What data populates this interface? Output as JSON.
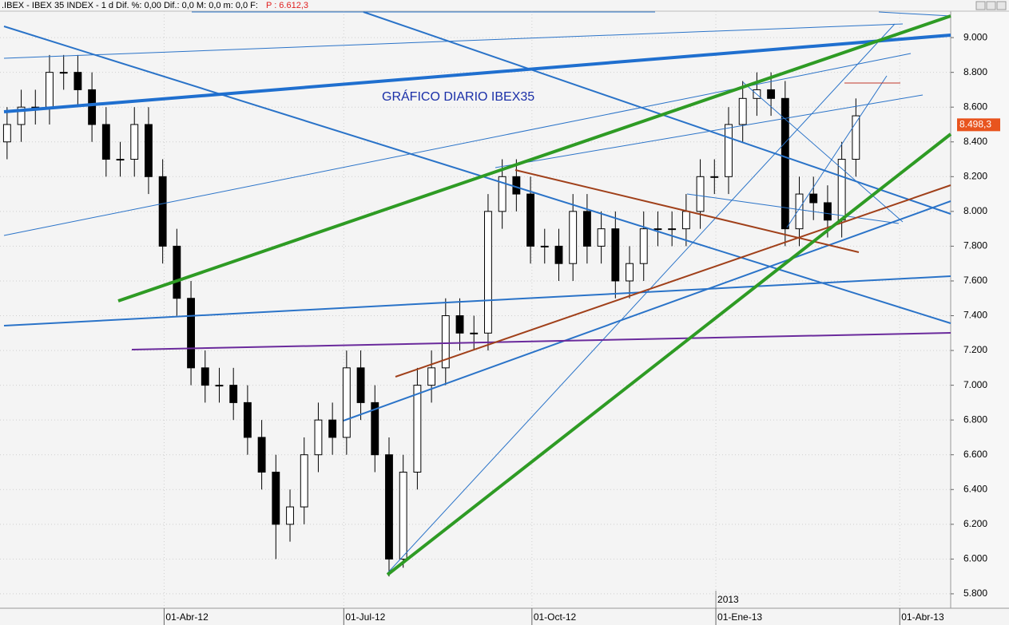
{
  "header": {
    "title": ".IBEX - IBEX 35 INDEX - 1 d  Dif. %: 0,00  Dif.: 0,0  M: 0,0  m: 0,0  F:",
    "price": "P : 6.612,3"
  },
  "chart_data": {
    "type": "candlestick",
    "annotation": "GRÁFICO DIARIO IBEX35",
    "year_label": "2013",
    "last_price": {
      "value": 8498.3,
      "label": "8.498,3"
    },
    "open": [
      8400,
      8500,
      8600,
      8600,
      8800,
      8800,
      8700,
      8500,
      8300,
      8300,
      8500,
      8200,
      7800,
      7500,
      7100,
      7000,
      7000,
      6900,
      6700,
      6500,
      6200,
      6300,
      6600,
      6800,
      6700,
      7100,
      6900,
      6600,
      6000,
      6500,
      7000,
      7100,
      7400,
      7300,
      7300,
      8000,
      8200,
      8100,
      7800,
      7800,
      7700,
      8000,
      7800,
      7900,
      7600,
      7700,
      7900,
      7900,
      7900,
      8000,
      8200,
      8200,
      8500,
      8650,
      8700,
      8650,
      7900,
      8100,
      8050,
      7950,
      8300
    ],
    "high": [
      8600,
      8700,
      8700,
      8900,
      8900,
      8900,
      8800,
      8600,
      8400,
      8600,
      8600,
      8300,
      7900,
      7600,
      7200,
      7100,
      7100,
      7000,
      6800,
      6600,
      6400,
      6700,
      6900,
      6900,
      7200,
      7200,
      7000,
      6700,
      6600,
      7100,
      7200,
      7500,
      7500,
      7400,
      8100,
      8300,
      8300,
      8200,
      7900,
      7900,
      8100,
      8100,
      8000,
      8000,
      7800,
      8000,
      8000,
      8000,
      8100,
      8300,
      8300,
      8600,
      8750,
      8800,
      8800,
      8750,
      8200,
      8200,
      8150,
      8400,
      8650
    ],
    "low": [
      8300,
      8400,
      8500,
      8500,
      8700,
      8600,
      8400,
      8200,
      8200,
      8200,
      8100,
      7700,
      7400,
      7000,
      6900,
      6900,
      6800,
      6600,
      6400,
      6000,
      6100,
      6200,
      6500,
      6600,
      6600,
      6800,
      6500,
      5900,
      5950,
      6400,
      6900,
      7000,
      7200,
      7200,
      7200,
      7900,
      8000,
      7700,
      7700,
      7600,
      7600,
      7700,
      7700,
      7500,
      7500,
      7600,
      7800,
      7800,
      7800,
      7900,
      8100,
      8100,
      8400,
      8550,
      8550,
      7800,
      7800,
      7950,
      7850,
      7850,
      8200
    ],
    "close": [
      8500,
      8600,
      8600,
      8800,
      8800,
      8700,
      8500,
      8300,
      8300,
      8500,
      8200,
      7800,
      7500,
      7100,
      7000,
      7000,
      6900,
      6700,
      6500,
      6200,
      6300,
      6600,
      6800,
      6700,
      7100,
      6900,
      6600,
      6000,
      6500,
      7000,
      7100,
      7400,
      7300,
      7300,
      8000,
      8200,
      8100,
      7800,
      7800,
      7700,
      8000,
      7800,
      7900,
      7600,
      7700,
      7900,
      7900,
      7900,
      8000,
      8200,
      8200,
      8500,
      8650,
      8700,
      8650,
      7900,
      8100,
      8050,
      7950,
      8300,
      8550
    ],
    "xlim": [
      0,
      67.2
    ],
    "xticks": [
      {
        "value": 11.6,
        "label": "01-Abr-12"
      },
      {
        "value": 24.3,
        "label": "01-Jul-12"
      },
      {
        "value": 37.6,
        "label": "01-Oct-12"
      },
      {
        "value": 50.6,
        "label": "01-Ene-13"
      },
      {
        "value": 63.6,
        "label": "01-Abr-13"
      }
    ],
    "ylim": [
      5717,
      9152
    ],
    "yticks": [
      {
        "value": 5800,
        "label": "5.800"
      },
      {
        "value": 6000,
        "label": "6.000"
      },
      {
        "value": 6200,
        "label": "6.200"
      },
      {
        "value": 6400,
        "label": "6.400"
      },
      {
        "value": 6600,
        "label": "6.600"
      },
      {
        "value": 6800,
        "label": "6.800"
      },
      {
        "value": 7000,
        "label": "7.000"
      },
      {
        "value": 7200,
        "label": "7.200"
      },
      {
        "value": 7400,
        "label": "7.400"
      },
      {
        "value": 7600,
        "label": "7.600"
      },
      {
        "value": 7800,
        "label": "7.800"
      },
      {
        "value": 8000,
        "label": "8.000"
      },
      {
        "value": 8200,
        "label": "8.200"
      },
      {
        "value": 8400,
        "label": "8.400"
      },
      {
        "value": 8600,
        "label": "8.600"
      },
      {
        "value": 8800,
        "label": "8.800"
      },
      {
        "value": 9000,
        "label": "9.000"
      }
    ],
    "grid": true
  }
}
